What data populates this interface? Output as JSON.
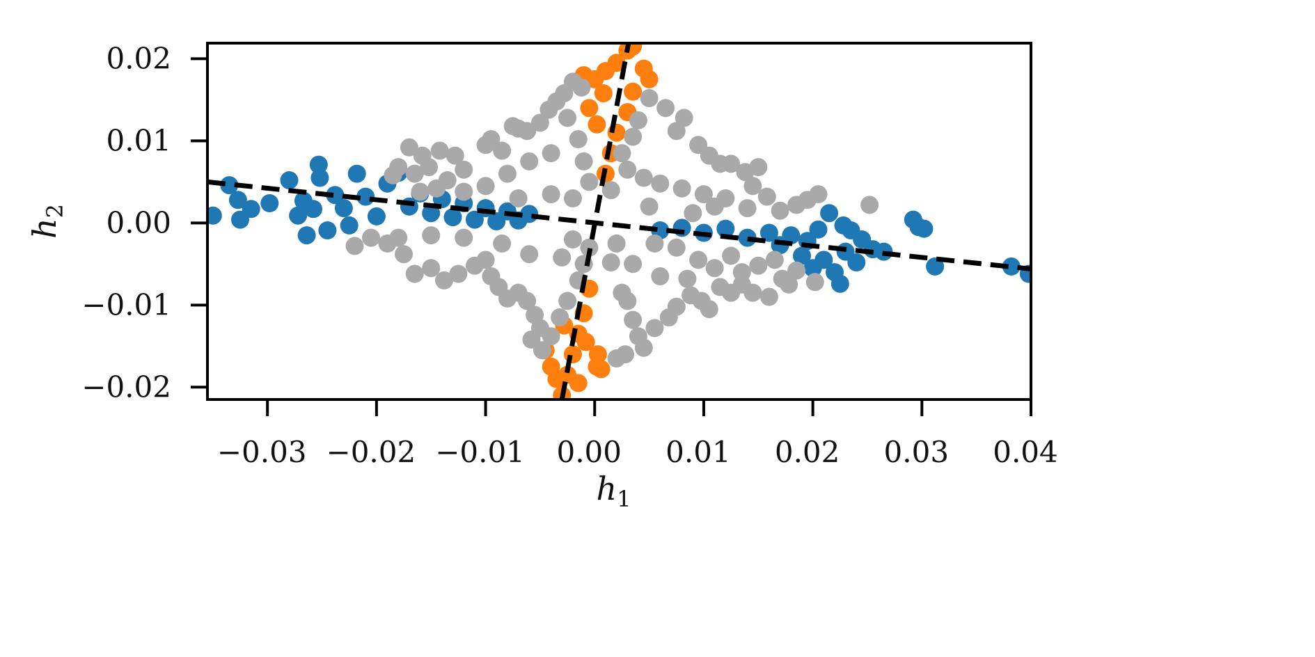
{
  "chart_data": {
    "type": "scatter",
    "xlabel": {
      "base": "h",
      "sub": "1"
    },
    "ylabel": {
      "base": "h",
      "sub": "2"
    },
    "xlim": [
      -0.0355,
      0.04
    ],
    "ylim": [
      -0.0215,
      0.0219
    ],
    "xticks": [
      {
        "value": -0.03,
        "label": "−0.03"
      },
      {
        "value": -0.02,
        "label": "−0.02"
      },
      {
        "value": -0.01,
        "label": "−0.01"
      },
      {
        "value": 0.0,
        "label": "0.00"
      },
      {
        "value": 0.01,
        "label": "0.01"
      },
      {
        "value": 0.02,
        "label": "0.02"
      },
      {
        "value": 0.03,
        "label": "0.03"
      },
      {
        "value": 0.04,
        "label": "0.04"
      }
    ],
    "yticks": [
      {
        "value": -0.02,
        "label": "−0.02"
      },
      {
        "value": -0.01,
        "label": "−0.01"
      },
      {
        "value": 0.0,
        "label": "0.00"
      },
      {
        "value": 0.01,
        "label": "0.01"
      },
      {
        "value": 0.02,
        "label": "0.02"
      }
    ],
    "grid": false,
    "legend": "none",
    "series": [
      {
        "color": "#1f77b4",
        "points": [
          [
            -0.035,
            0.0009
          ],
          [
            -0.0335,
            0.0046
          ],
          [
            -0.0327,
            0.0028
          ],
          [
            -0.0325,
            0.0004
          ],
          [
            -0.0315,
            0.0017
          ],
          [
            -0.0298,
            0.0024
          ],
          [
            -0.028,
            0.0052
          ],
          [
            -0.0272,
            0.0009
          ],
          [
            -0.0267,
            0.0027
          ],
          [
            -0.0264,
            -0.0015
          ],
          [
            -0.0258,
            0.0017
          ],
          [
            -0.0252,
            0.0055
          ],
          [
            -0.0253,
            0.0071
          ],
          [
            -0.0245,
            -0.0009
          ],
          [
            -0.0238,
            0.0034
          ],
          [
            -0.023,
            0.0018
          ],
          [
            -0.0225,
            -0.0003
          ],
          [
            -0.0218,
            0.006
          ],
          [
            -0.021,
            0.0032
          ],
          [
            -0.02,
            0.0008
          ],
          [
            -0.019,
            0.0048
          ],
          [
            -0.018,
            0.0061
          ],
          [
            -0.017,
            0.002
          ],
          [
            -0.016,
            0.0036
          ],
          [
            -0.015,
            0.0012
          ],
          [
            -0.014,
            0.0029
          ],
          [
            -0.013,
            0.0007
          ],
          [
            -0.012,
            0.0024
          ],
          [
            -0.011,
            0.0004
          ],
          [
            -0.01,
            0.0018
          ],
          [
            -0.009,
            0.0002
          ],
          [
            -0.008,
            0.0014
          ],
          [
            -0.007,
            0.0003
          ],
          [
            -0.006,
            0.0011
          ],
          [
            0.006,
            -0.0009
          ],
          [
            0.008,
            -0.0006
          ],
          [
            0.01,
            -0.0012
          ],
          [
            0.012,
            -0.0007
          ],
          [
            0.014,
            -0.0018
          ],
          [
            0.016,
            -0.0012
          ],
          [
            0.017,
            -0.0027
          ],
          [
            0.018,
            -0.0015
          ],
          [
            0.019,
            -0.004
          ],
          [
            0.0195,
            -0.0022
          ],
          [
            0.02,
            -0.0055
          ],
          [
            0.0205,
            -0.0008
          ],
          [
            0.021,
            -0.0045
          ],
          [
            0.0215,
            0.0012
          ],
          [
            0.022,
            -0.006
          ],
          [
            0.0225,
            -0.0074
          ],
          [
            0.0228,
            -0.0003
          ],
          [
            0.023,
            -0.0035
          ],
          [
            0.0235,
            -0.0009
          ],
          [
            0.024,
            -0.0048
          ],
          [
            0.0245,
            -0.002
          ],
          [
            0.0255,
            -0.0032
          ],
          [
            0.0265,
            -0.0035
          ],
          [
            0.0292,
            0.0004
          ],
          [
            0.0297,
            -0.0005
          ],
          [
            0.0302,
            -0.0007
          ],
          [
            0.0312,
            -0.0053
          ],
          [
            0.0382,
            -0.0053
          ],
          [
            0.0398,
            -0.0062
          ]
        ]
      },
      {
        "color": "#ff7f0e",
        "points": [
          [
            -0.001,
            0.018
          ],
          [
            0.0,
            0.0175
          ],
          [
            0.001,
            0.0185
          ],
          [
            0.002,
            0.0195
          ],
          [
            0.003,
            0.021
          ],
          [
            0.0035,
            0.0215
          ],
          [
            0.0045,
            0.0188
          ],
          [
            0.005,
            0.0175
          ],
          [
            0.0035,
            0.016
          ],
          [
            0.003,
            0.0135
          ],
          [
            0.002,
            0.011
          ],
          [
            0.0015,
            0.0085
          ],
          [
            0.001,
            0.006
          ],
          [
            -0.0005,
            0.014
          ],
          [
            0.0002,
            0.012
          ],
          [
            0.0008,
            0.0158
          ],
          [
            -0.0005,
            -0.008
          ],
          [
            -0.001,
            -0.011
          ],
          [
            -0.0015,
            -0.0135
          ],
          [
            -0.002,
            -0.016
          ],
          [
            -0.0025,
            -0.0185
          ],
          [
            -0.003,
            -0.021
          ],
          [
            -0.004,
            -0.0175
          ],
          [
            -0.0045,
            -0.0155
          ],
          [
            -0.0015,
            -0.0195
          ],
          [
            0.0002,
            -0.0175
          ],
          [
            0.0006,
            -0.0178
          ],
          [
            0.0003,
            -0.016
          ],
          [
            -0.0035,
            -0.019
          ],
          [
            -0.0008,
            -0.0145
          ],
          [
            -0.0028,
            -0.0125
          ]
        ]
      },
      {
        "color": "#a9a9a9",
        "points": [
          [
            -0.017,
            0.0092
          ],
          [
            -0.0158,
            0.0082
          ],
          [
            -0.0142,
            0.0088
          ],
          [
            -0.0128,
            0.0082
          ],
          [
            -0.018,
            0.0068
          ],
          [
            -0.0165,
            0.006
          ],
          [
            -0.0152,
            0.0068
          ],
          [
            -0.0135,
            0.0052
          ],
          [
            -0.012,
            0.0065
          ],
          [
            -0.01,
            0.0095
          ],
          [
            -0.0095,
            0.0102
          ],
          [
            -0.0085,
            0.0088
          ],
          [
            -0.0075,
            0.0118
          ],
          [
            -0.007,
            0.0115
          ],
          [
            -0.0062,
            0.0112
          ],
          [
            -0.005,
            0.0122
          ],
          [
            -0.0042,
            0.0138
          ],
          [
            -0.0035,
            0.0148
          ],
          [
            -0.0028,
            0.0158
          ],
          [
            -0.002,
            0.0172
          ],
          [
            -0.0012,
            0.0165
          ],
          [
            -0.0025,
            0.0128
          ],
          [
            -0.0015,
            0.0102
          ],
          [
            -0.001,
            0.0075
          ],
          [
            -0.0005,
            0.005
          ],
          [
            -0.004,
            0.0085
          ],
          [
            -0.006,
            0.0075
          ],
          [
            -0.008,
            0.006
          ],
          [
            -0.01,
            0.0045
          ],
          [
            -0.012,
            0.0038
          ],
          [
            -0.0145,
            0.0042
          ],
          [
            -0.016,
            0.0038
          ],
          [
            -0.0185,
            0.0058
          ],
          [
            -0.002,
            0.003
          ],
          [
            -0.004,
            0.0035
          ],
          [
            -0.007,
            0.003
          ],
          [
            0.004,
            0.0125
          ],
          [
            0.005,
            0.0152
          ],
          [
            0.0065,
            0.014
          ],
          [
            0.0075,
            0.0112
          ],
          [
            0.0082,
            0.0128
          ],
          [
            0.0095,
            0.0095
          ],
          [
            0.0105,
            0.0082
          ],
          [
            0.0115,
            0.0072
          ],
          [
            0.0125,
            0.0072
          ],
          [
            0.0138,
            0.0062
          ],
          [
            0.015,
            0.0068
          ],
          [
            0.0145,
            0.0045
          ],
          [
            0.0158,
            0.0032
          ],
          [
            0.017,
            0.0015
          ],
          [
            0.0185,
            0.0022
          ],
          [
            0.0195,
            0.0028
          ],
          [
            0.0205,
            0.0035
          ],
          [
            0.0252,
            0.0022
          ],
          [
            0.0025,
            0.0085
          ],
          [
            0.003,
            0.0065
          ],
          [
            0.0045,
            0.0055
          ],
          [
            0.006,
            0.0048
          ],
          [
            0.008,
            0.0042
          ],
          [
            0.01,
            0.0035
          ],
          [
            0.012,
            0.003
          ],
          [
            0.014,
            0.0018
          ],
          [
            0.0015,
            0.004
          ],
          [
            0.005,
            0.002
          ],
          [
            0.009,
            0.0012
          ],
          [
            0.011,
            0.002
          ],
          [
            0.0035,
            0.0105
          ],
          [
            -0.022,
            -0.0028
          ],
          [
            -0.0205,
            -0.0018
          ],
          [
            -0.019,
            -0.0025
          ],
          [
            -0.0175,
            -0.0038
          ],
          [
            -0.0165,
            -0.0062
          ],
          [
            -0.015,
            -0.0055
          ],
          [
            -0.0138,
            -0.007
          ],
          [
            -0.0125,
            -0.0062
          ],
          [
            -0.011,
            -0.0052
          ],
          [
            -0.01,
            -0.0045
          ],
          [
            -0.0095,
            -0.0065
          ],
          [
            -0.0088,
            -0.0078
          ],
          [
            -0.008,
            -0.0092
          ],
          [
            -0.007,
            -0.0085
          ],
          [
            -0.0062,
            -0.0095
          ],
          [
            -0.0055,
            -0.0112
          ],
          [
            -0.005,
            -0.0128
          ],
          [
            -0.0058,
            -0.0142
          ],
          [
            -0.0048,
            -0.0155
          ],
          [
            -0.004,
            -0.0138
          ],
          [
            -0.0032,
            -0.0115
          ],
          [
            -0.0025,
            -0.0095
          ],
          [
            -0.0015,
            -0.007
          ],
          [
            -0.001,
            -0.005
          ],
          [
            -0.0005,
            -0.003
          ],
          [
            -0.003,
            -0.0042
          ],
          [
            -0.006,
            -0.0038
          ],
          [
            -0.0085,
            -0.0025
          ],
          [
            -0.012,
            -0.0018
          ],
          [
            -0.015,
            -0.0015
          ],
          [
            -0.018,
            -0.0018
          ],
          [
            -0.002,
            -0.002
          ],
          [
            0.0015,
            -0.0048
          ],
          [
            0.0025,
            -0.0085
          ],
          [
            0.0035,
            -0.0118
          ],
          [
            0.004,
            -0.0138
          ],
          [
            0.0028,
            -0.016
          ],
          [
            0.002,
            -0.0165
          ],
          [
            0.0045,
            -0.0152
          ],
          [
            0.0055,
            -0.0128
          ],
          [
            0.0068,
            -0.0115
          ],
          [
            0.0075,
            -0.0102
          ],
          [
            0.0088,
            -0.0088
          ],
          [
            0.0098,
            -0.0095
          ],
          [
            0.0105,
            -0.0105
          ],
          [
            0.0115,
            -0.0078
          ],
          [
            0.0125,
            -0.0085
          ],
          [
            0.0135,
            -0.0075
          ],
          [
            0.0145,
            -0.0085
          ],
          [
            0.016,
            -0.009
          ],
          [
            0.0172,
            -0.0068
          ],
          [
            0.0178,
            -0.0075
          ],
          [
            0.0185,
            -0.0058
          ],
          [
            0.0202,
            -0.0072
          ],
          [
            0.0165,
            -0.0045
          ],
          [
            0.015,
            -0.0052
          ],
          [
            0.0125,
            -0.004
          ],
          [
            0.0095,
            -0.0045
          ],
          [
            0.0075,
            -0.003
          ],
          [
            0.0055,
            -0.0025
          ],
          [
            0.011,
            -0.0055
          ],
          [
            0.0135,
            -0.006
          ],
          [
            0.0035,
            -0.005
          ],
          [
            0.002,
            -0.0025
          ],
          [
            0.006,
            -0.0065
          ],
          [
            0.0085,
            -0.0068
          ],
          [
            0.003,
            -0.0095
          ]
        ]
      }
    ],
    "lines": [
      {
        "style": "dashed",
        "color": "#000000",
        "from": [
          -0.0355,
          0.005
        ],
        "to": [
          0.04,
          -0.0056
        ]
      },
      {
        "style": "dashed",
        "color": "#000000",
        "from": [
          -0.003,
          -0.0215
        ],
        "to": [
          0.0031,
          0.0219
        ]
      }
    ]
  }
}
